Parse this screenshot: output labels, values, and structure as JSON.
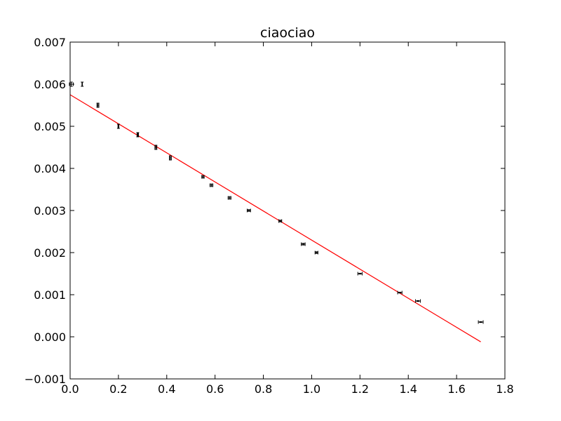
{
  "chart_data": {
    "type": "scatter",
    "title": "ciaociao",
    "xlabel": "",
    "ylabel": "",
    "xlim": [
      0.0,
      1.8
    ],
    "ylim": [
      -0.001,
      0.007
    ],
    "x_ticks": [
      "0.0",
      "0.2",
      "0.4",
      "0.6",
      "0.8",
      "1.0",
      "1.2",
      "1.4",
      "1.6",
      "1.8"
    ],
    "y_ticks": [
      "−0.001",
      "0.000",
      "0.001",
      "0.002",
      "0.003",
      "0.004",
      "0.005",
      "0.006",
      "0.007"
    ],
    "grid": false,
    "legend": "none",
    "series": [
      {
        "kind": "errorbar",
        "color": "#000000",
        "points": [
          {
            "x": 0.005,
            "y": 0.006,
            "xerr": 0.008,
            "yerr": 5e-05
          },
          {
            "x": 0.05,
            "y": 0.006,
            "xerr": 0.001,
            "yerr": 5e-05
          },
          {
            "x": 0.115,
            "y": 0.0055,
            "xerr": 0.004,
            "yerr": 5e-05
          },
          {
            "x": 0.2,
            "y": 0.005,
            "xerr": 0.002,
            "yerr": 5e-05
          },
          {
            "x": 0.28,
            "y": 0.0048,
            "xerr": 0.003,
            "yerr": 5e-05
          },
          {
            "x": 0.355,
            "y": 0.0045,
            "xerr": 0.004,
            "yerr": 5e-05
          },
          {
            "x": 0.415,
            "y": 0.00425,
            "xerr": 0.004,
            "yerr": 5e-05
          },
          {
            "x": 0.55,
            "y": 0.0038,
            "xerr": 0.005,
            "yerr": 3e-05
          },
          {
            "x": 0.585,
            "y": 0.0036,
            "xerr": 0.006,
            "yerr": 3e-05
          },
          {
            "x": 0.66,
            "y": 0.0033,
            "xerr": 0.006,
            "yerr": 3e-05
          },
          {
            "x": 0.74,
            "y": 0.003,
            "xerr": 0.007,
            "yerr": 2e-05
          },
          {
            "x": 0.87,
            "y": 0.00275,
            "xerr": 0.006,
            "yerr": 2e-05
          },
          {
            "x": 0.965,
            "y": 0.0022,
            "xerr": 0.008,
            "yerr": 2e-05
          },
          {
            "x": 1.02,
            "y": 0.002,
            "xerr": 0.006,
            "yerr": 2e-05
          },
          {
            "x": 1.2,
            "y": 0.0015,
            "xerr": 0.009,
            "yerr": 1e-05
          },
          {
            "x": 1.365,
            "y": 0.00105,
            "xerr": 0.009,
            "yerr": 1e-05
          },
          {
            "x": 1.44,
            "y": 0.00085,
            "xerr": 0.01,
            "yerr": 1e-05
          },
          {
            "x": 1.7,
            "y": 0.00035,
            "xerr": 0.01,
            "yerr": 1e-05
          }
        ]
      },
      {
        "kind": "line",
        "color": "#ff0000",
        "x": [
          0.0,
          1.7
        ],
        "y": [
          0.00575,
          -0.00012
        ]
      }
    ]
  }
}
